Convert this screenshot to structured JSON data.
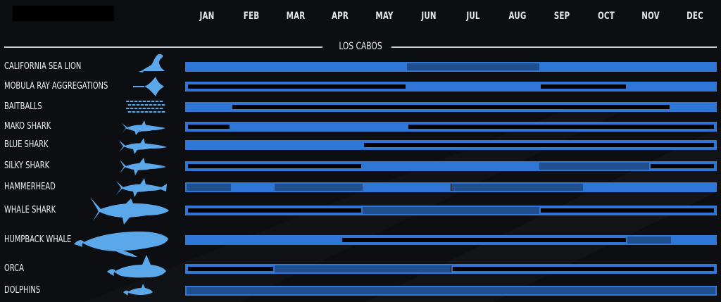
{
  "header": {
    "location": "LOS CABOS"
  },
  "colors": {
    "background": "#0d0e11",
    "high": "#2f77d6",
    "medium": "#1f4f8f",
    "none": "#000000",
    "icon": "#5aa7ea"
  },
  "chart_data": {
    "type": "table",
    "title": "",
    "legend": "none",
    "months": [
      "JAN",
      "FEB",
      "MAR",
      "APR",
      "MAY",
      "JUN",
      "JUL",
      "AUG",
      "SEP",
      "OCT",
      "NOV",
      "DEC"
    ],
    "rows": [
      {
        "label": "CALIFORNIA SEA LION",
        "icon": "sea-lion-icon",
        "segments": [
          {
            "start": 1,
            "end": 6,
            "level": "high"
          },
          {
            "start": 6,
            "end": 9,
            "level": "medium"
          },
          {
            "start": 9,
            "end": 13,
            "level": "high"
          }
        ]
      },
      {
        "label": "MOBULA RAY AGGREGATIONS",
        "icon": "mobula-ray-icon",
        "segments": [
          {
            "start": 1,
            "end": 6,
            "level": "none"
          },
          {
            "start": 6,
            "end": 9,
            "level": "high"
          },
          {
            "start": 9,
            "end": 11,
            "level": "none"
          },
          {
            "start": 11,
            "end": 13,
            "level": "high"
          }
        ]
      },
      {
        "label": "BAITBALLS",
        "icon": "baitball-icon",
        "segments": [
          {
            "start": 1,
            "end": 2,
            "level": "high"
          },
          {
            "start": 2,
            "end": 12,
            "level": "none"
          },
          {
            "start": 12,
            "end": 13,
            "level": "high"
          }
        ]
      },
      {
        "label": "MAKO SHARK",
        "icon": "mako-shark-icon",
        "segments": [
          {
            "start": 1,
            "end": 2,
            "level": "none"
          },
          {
            "start": 2,
            "end": 6,
            "level": "high"
          },
          {
            "start": 6,
            "end": 13,
            "level": "none"
          }
        ]
      },
      {
        "label": "BLUE SHARK",
        "icon": "blue-shark-icon",
        "segments": [
          {
            "start": 1,
            "end": 5,
            "level": "high"
          },
          {
            "start": 5,
            "end": 13,
            "level": "none"
          }
        ]
      },
      {
        "label": "SILKY SHARK",
        "icon": "silky-shark-icon",
        "segments": [
          {
            "start": 1,
            "end": 5,
            "level": "none"
          },
          {
            "start": 5,
            "end": 9,
            "level": "high"
          },
          {
            "start": 9,
            "end": 11.5,
            "level": "medium"
          },
          {
            "start": 11.5,
            "end": 13,
            "level": "none"
          }
        ]
      },
      {
        "label": "HAMMERHEAD",
        "icon": "hammerhead-icon",
        "segments": [
          {
            "start": 1,
            "end": 2,
            "level": "medium"
          },
          {
            "start": 2,
            "end": 3,
            "level": "high"
          },
          {
            "start": 3,
            "end": 5,
            "level": "medium"
          },
          {
            "start": 5,
            "end": 7,
            "level": "high"
          },
          {
            "start": 7,
            "end": 10,
            "level": "medium"
          },
          {
            "start": 10,
            "end": 13,
            "level": "high"
          }
        ]
      },
      {
        "label": "WHALE SHARK",
        "icon": "whale-shark-icon",
        "segments": [
          {
            "start": 1,
            "end": 5,
            "level": "none"
          },
          {
            "start": 5,
            "end": 9,
            "level": "medium"
          },
          {
            "start": 9,
            "end": 13,
            "level": "none"
          }
        ]
      },
      {
        "label": "HUMPBACK WHALE",
        "icon": "humpback-whale-icon",
        "segments": [
          {
            "start": 1,
            "end": 4.5,
            "level": "high"
          },
          {
            "start": 4.5,
            "end": 11,
            "level": "none"
          },
          {
            "start": 11,
            "end": 12,
            "level": "medium"
          },
          {
            "start": 12,
            "end": 13,
            "level": "high"
          }
        ]
      },
      {
        "label": "ORCA",
        "icon": "orca-icon",
        "segments": [
          {
            "start": 1,
            "end": 3,
            "level": "none"
          },
          {
            "start": 3,
            "end": 7,
            "level": "medium"
          },
          {
            "start": 7,
            "end": 13,
            "level": "none"
          }
        ]
      },
      {
        "label": "DOLPHINS",
        "icon": "dolphin-icon",
        "segments": [
          {
            "start": 1,
            "end": 13,
            "level": "medium"
          }
        ]
      }
    ]
  }
}
